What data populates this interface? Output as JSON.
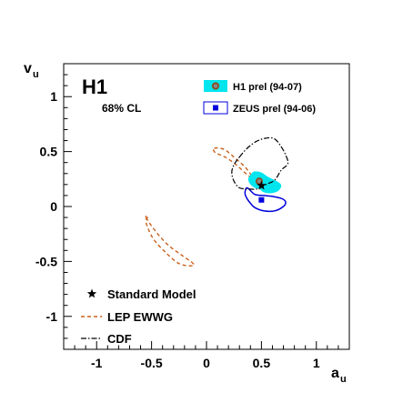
{
  "chart_data": {
    "type": "scatter",
    "experiment_label": "H1",
    "cl_label": "68% CL",
    "xlabel": "a",
    "xlabel_sub": "u",
    "ylabel": "v",
    "ylabel_sub": "u",
    "xlim": [
      -1.3,
      1.3
    ],
    "ylim": [
      -1.3,
      1.3
    ],
    "xticks": [
      -1,
      -0.5,
      0,
      0.5,
      1
    ],
    "xtick_labels": [
      "-1",
      "-0.5",
      "0",
      "0.5",
      "1"
    ],
    "yticks": [
      -1,
      -0.5,
      0,
      0.5,
      1
    ],
    "ytick_labels": [
      "-1",
      "-0.5",
      "0",
      "0.5",
      "1"
    ],
    "grid": false,
    "legend_placement": "top-right and bottom-left",
    "series": [
      {
        "name": "H1 prel (94-07)",
        "kind": "ellipse-region",
        "color": "#00e5ee",
        "marker_color": "#8b4513",
        "center": [
          0.48,
          0.23
        ],
        "contour": [
          [
            0.41,
            0.3
          ],
          [
            0.44,
            0.32
          ],
          [
            0.5,
            0.31
          ],
          [
            0.56,
            0.27
          ],
          [
            0.62,
            0.24
          ],
          [
            0.67,
            0.21
          ],
          [
            0.68,
            0.18
          ],
          [
            0.65,
            0.14
          ],
          [
            0.58,
            0.12
          ],
          [
            0.52,
            0.13
          ],
          [
            0.48,
            0.16
          ],
          [
            0.44,
            0.17
          ],
          [
            0.4,
            0.2
          ],
          [
            0.38,
            0.25
          ]
        ]
      },
      {
        "name": "ZEUS prel (94-06)",
        "kind": "contour",
        "color": "#0000dd",
        "center": [
          0.5,
          0.06
        ],
        "contour": [
          [
            0.37,
            0.17
          ],
          [
            0.44,
            0.11
          ],
          [
            0.52,
            0.1
          ],
          [
            0.61,
            0.09
          ],
          [
            0.69,
            0.07
          ],
          [
            0.72,
            0.04
          ],
          [
            0.7,
            0.0
          ],
          [
            0.62,
            -0.04
          ],
          [
            0.52,
            -0.04
          ],
          [
            0.44,
            -0.01
          ],
          [
            0.4,
            0.03
          ],
          [
            0.37,
            0.07
          ],
          [
            0.35,
            0.12
          ]
        ]
      },
      {
        "name": "Standard Model",
        "kind": "point",
        "color": "#000000",
        "point": [
          0.5,
          0.19
        ]
      },
      {
        "name": "LEP EWWG",
        "kind": "contour-dashed",
        "color": "#c8601c",
        "contour": [
          [
            -0.55,
            -0.1
          ],
          [
            -0.46,
            -0.23
          ],
          [
            -0.35,
            -0.35
          ],
          [
            -0.23,
            -0.44
          ],
          [
            -0.12,
            -0.52
          ],
          [
            -0.14,
            -0.54
          ],
          [
            -0.25,
            -0.52
          ],
          [
            -0.37,
            -0.42
          ],
          [
            -0.48,
            -0.3
          ],
          [
            -0.54,
            -0.18
          ],
          [
            -0.55,
            -0.12
          ],
          [
            -0.53,
            -0.09
          ]
        ],
        "contour2": [
          [
            0.07,
            0.53
          ],
          [
            0.16,
            0.52
          ],
          [
            0.26,
            0.44
          ],
          [
            0.35,
            0.36
          ],
          [
            0.44,
            0.25
          ],
          [
            0.54,
            0.19
          ],
          [
            0.56,
            0.17
          ],
          [
            0.47,
            0.22
          ],
          [
            0.37,
            0.29
          ],
          [
            0.27,
            0.38
          ],
          [
            0.17,
            0.45
          ],
          [
            0.08,
            0.49
          ]
        ]
      },
      {
        "name": "CDF",
        "kind": "contour-dashdot",
        "color": "#000000",
        "contour": [
          [
            0.3,
            0.45
          ],
          [
            0.37,
            0.53
          ],
          [
            0.45,
            0.59
          ],
          [
            0.53,
            0.62
          ],
          [
            0.61,
            0.62
          ],
          [
            0.67,
            0.56
          ],
          [
            0.72,
            0.47
          ],
          [
            0.74,
            0.39
          ],
          [
            0.68,
            0.33
          ],
          [
            0.62,
            0.24
          ],
          [
            0.54,
            0.2
          ],
          [
            0.46,
            0.16
          ],
          [
            0.38,
            0.16
          ],
          [
            0.3,
            0.17
          ],
          [
            0.25,
            0.23
          ],
          [
            0.23,
            0.31
          ],
          [
            0.25,
            0.38
          ]
        ]
      }
    ]
  }
}
